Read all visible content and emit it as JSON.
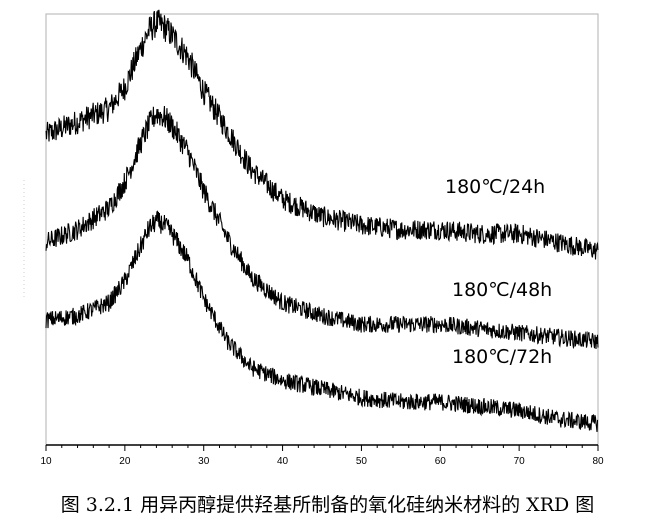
{
  "caption": "图 3.2.1 用异丙醇提供羟基所制备的氧化硅纳米材料的 XRD 图",
  "chart_data": {
    "type": "line",
    "title": "",
    "xlabel": "",
    "ylabel": "",
    "xlim": [
      10,
      80
    ],
    "xticks": [
      10,
      20,
      30,
      40,
      50,
      60,
      70,
      80
    ],
    "y_axis_visible": false,
    "grid": false,
    "line_color": "#000000",
    "series": [
      {
        "name": "180℃/24h",
        "x": [
          10,
          14,
          18,
          20,
          22,
          23,
          24,
          25,
          26,
          28,
          30,
          33,
          36,
          40,
          45,
          50,
          55,
          60,
          65,
          70,
          75,
          80
        ],
        "y": [
          0.72,
          0.75,
          0.78,
          0.83,
          0.92,
          0.96,
          0.98,
          0.97,
          0.95,
          0.9,
          0.82,
          0.73,
          0.64,
          0.57,
          0.53,
          0.51,
          0.5,
          0.5,
          0.49,
          0.49,
          0.47,
          0.45
        ]
      },
      {
        "name": "180℃/48h",
        "x": [
          10,
          14,
          18,
          20,
          22,
          23,
          24,
          25,
          26,
          28,
          30,
          33,
          36,
          40,
          45,
          50,
          55,
          60,
          65,
          70,
          75,
          80
        ],
        "y": [
          0.47,
          0.5,
          0.55,
          0.61,
          0.7,
          0.74,
          0.77,
          0.76,
          0.74,
          0.68,
          0.59,
          0.48,
          0.39,
          0.33,
          0.3,
          0.28,
          0.28,
          0.28,
          0.27,
          0.26,
          0.25,
          0.24
        ]
      },
      {
        "name": "180℃/72h",
        "x": [
          10,
          14,
          18,
          20,
          22,
          23,
          24,
          25,
          26,
          28,
          30,
          33,
          36,
          40,
          45,
          50,
          55,
          60,
          65,
          70,
          75,
          80
        ],
        "y": [
          0.29,
          0.3,
          0.33,
          0.38,
          0.46,
          0.5,
          0.52,
          0.51,
          0.49,
          0.43,
          0.34,
          0.24,
          0.18,
          0.15,
          0.13,
          0.11,
          0.1,
          0.1,
          0.09,
          0.08,
          0.06,
          0.05
        ]
      }
    ]
  }
}
